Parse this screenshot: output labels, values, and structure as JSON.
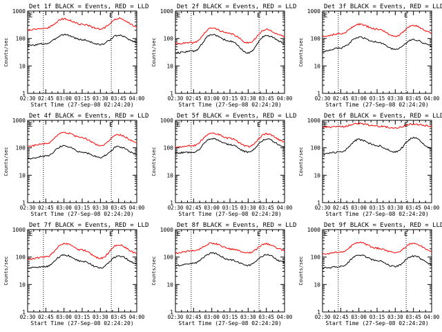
{
  "page": {
    "xticks": [
      "02:30",
      "02:45",
      "03:00",
      "03:15",
      "03:30",
      "03:45",
      "04:00"
    ],
    "xlabel": "Start Time (27-Sep-08 02:24:20)",
    "ylabel": "Counts/sec",
    "yticks": [
      "1",
      "10",
      "100",
      "1000"
    ],
    "marker": "E",
    "colors": {
      "events": "#000000",
      "lld": "#ff0000",
      "axes": "#000000",
      "background": "#ffffff"
    }
  },
  "chart_data": [
    {
      "type": "line",
      "title": "Det 1f BLACK = Events, RED = LLD",
      "xlim": [
        "02:30",
        "04:00"
      ],
      "ylim": [
        1,
        1000
      ],
      "yscale": "log",
      "grid": false,
      "vlines": [
        "02:43",
        "03:39"
      ],
      "x": [
        "02:30",
        "02:45",
        "03:00",
        "03:15",
        "03:30",
        "03:45",
        "04:00"
      ],
      "series": [
        {
          "name": "Events",
          "values": [
            55,
            65,
            140,
            90,
            60,
            130,
            75
          ]
        },
        {
          "name": "LLD",
          "values": [
            210,
            240,
            520,
            330,
            220,
            540,
            280
          ]
        }
      ]
    },
    {
      "type": "line",
      "title": "Det 2f BLACK = Events, RED = LLD",
      "xlim": [
        "02:30",
        "04:00"
      ],
      "ylim": [
        1,
        1000
      ],
      "yscale": "log",
      "grid": false,
      "vlines": [
        "02:43",
        "03:39"
      ],
      "x": [
        "02:30",
        "02:45",
        "03:00",
        "03:15",
        "03:30",
        "03:45",
        "04:00"
      ],
      "series": [
        {
          "name": "Events",
          "values": [
            30,
            35,
            140,
            80,
            30,
            130,
            70
          ]
        },
        {
          "name": "LLD",
          "values": [
            65,
            70,
            240,
            150,
            70,
            210,
            120
          ]
        }
      ]
    },
    {
      "type": "line",
      "title": "Det 3f BLACK = Events, RED = LLD",
      "xlim": [
        "02:30",
        "04:00"
      ],
      "ylim": [
        1,
        1000
      ],
      "yscale": "log",
      "grid": false,
      "vlines": [
        "02:43",
        "03:39"
      ],
      "x": [
        "02:30",
        "02:45",
        "03:00",
        "03:15",
        "03:30",
        "03:45",
        "04:00"
      ],
      "series": [
        {
          "name": "Events",
          "values": [
            35,
            45,
            110,
            75,
            40,
            90,
            55
          ]
        },
        {
          "name": "LLD",
          "values": [
            120,
            150,
            330,
            220,
            120,
            300,
            160
          ]
        }
      ]
    },
    {
      "type": "line",
      "title": "Det 4f BLACK = Events, RED = LLD",
      "xlim": [
        "02:30",
        "04:00"
      ],
      "ylim": [
        1,
        1000
      ],
      "yscale": "log",
      "grid": false,
      "vlines": [
        "02:43",
        "03:39"
      ],
      "x": [
        "02:30",
        "02:45",
        "03:00",
        "03:15",
        "03:30",
        "03:45",
        "04:00"
      ],
      "series": [
        {
          "name": "Events",
          "values": [
            40,
            50,
            120,
            70,
            45,
            110,
            60
          ]
        },
        {
          "name": "LLD",
          "values": [
            115,
            140,
            360,
            230,
            120,
            300,
            160
          ]
        }
      ]
    },
    {
      "type": "line",
      "title": "Det 5f BLACK = Events, RED = LLD",
      "xlim": [
        "02:30",
        "04:00"
      ],
      "ylim": [
        1,
        1000
      ],
      "yscale": "log",
      "grid": false,
      "vlines": [
        "02:43",
        "03:39"
      ],
      "x": [
        "02:30",
        "02:45",
        "03:00",
        "03:15",
        "03:30",
        "03:45",
        "04:00"
      ],
      "series": [
        {
          "name": "Events",
          "values": [
            65,
            70,
            220,
            130,
            70,
            210,
            110
          ]
        },
        {
          "name": "LLD",
          "values": [
            105,
            120,
            350,
            220,
            110,
            320,
            170
          ]
        }
      ]
    },
    {
      "type": "line",
      "title": "Det 6f BLACK = Events, RED = LLD",
      "xlim": [
        "02:30",
        "04:00"
      ],
      "ylim": [
        1,
        1000
      ],
      "yscale": "log",
      "grid": false,
      "vlines": [
        "02:43",
        "03:39"
      ],
      "x": [
        "02:30",
        "02:45",
        "03:00",
        "03:15",
        "03:30",
        "03:45",
        "04:00"
      ],
      "series": [
        {
          "name": "Events",
          "values": [
            60,
            70,
            200,
            120,
            70,
            230,
            95
          ]
        },
        {
          "name": "LLD",
          "values": [
            560,
            580,
            760,
            620,
            530,
            730,
            620
          ]
        }
      ]
    },
    {
      "type": "line",
      "title": "Det 7f BLACK = Events, RED = LLD",
      "xlim": [
        "02:30",
        "04:00"
      ],
      "ylim": [
        1,
        1000
      ],
      "yscale": "log",
      "grid": false,
      "vlines": [
        "02:43",
        "03:39"
      ],
      "x": [
        "02:30",
        "02:45",
        "03:00",
        "03:15",
        "03:30",
        "03:45",
        "04:00"
      ],
      "series": [
        {
          "name": "Events",
          "values": [
            40,
            45,
            120,
            70,
            40,
            110,
            60
          ]
        },
        {
          "name": "LLD",
          "values": [
            85,
            100,
            310,
            180,
            90,
            280,
            140
          ]
        }
      ]
    },
    {
      "type": "line",
      "title": "Det 8f BLACK = Events, RED = LLD",
      "xlim": [
        "02:30",
        "04:00"
      ],
      "ylim": [
        1,
        1000
      ],
      "yscale": "log",
      "grid": false,
      "vlines": [
        "02:43",
        "03:39"
      ],
      "x": [
        "02:30",
        "02:45",
        "03:00",
        "03:15",
        "03:30",
        "03:45",
        "04:00"
      ],
      "series": [
        {
          "name": "Events",
          "values": [
            50,
            60,
            140,
            80,
            50,
            120,
            65
          ]
        },
        {
          "name": "LLD",
          "values": [
            140,
            170,
            320,
            200,
            140,
            300,
            180
          ]
        }
      ]
    },
    {
      "type": "line",
      "title": "Det 9f BLACK = Events, RED = LLD",
      "xlim": [
        "02:30",
        "04:00"
      ],
      "ylim": [
        1,
        1000
      ],
      "yscale": "log",
      "grid": false,
      "vlines": [
        "02:43",
        "03:39"
      ],
      "x": [
        "02:30",
        "02:45",
        "03:00",
        "03:15",
        "03:30",
        "03:45",
        "04:00"
      ],
      "series": [
        {
          "name": "Events",
          "values": [
            40,
            45,
            120,
            75,
            45,
            110,
            55
          ]
        },
        {
          "name": "LLD",
          "values": [
            130,
            150,
            340,
            210,
            140,
            320,
            165
          ]
        }
      ]
    }
  ]
}
